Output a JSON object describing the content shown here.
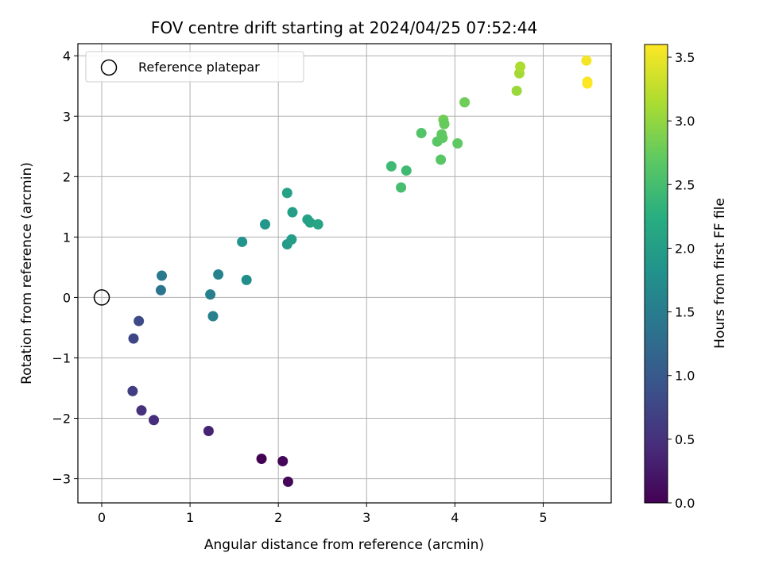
{
  "chart_data": {
    "type": "scatter",
    "title": "FOV centre drift starting at 2024/04/25 07:52:44",
    "xlabel": "Angular distance from reference (arcmin)",
    "ylabel": "Rotation from reference (arcmin)",
    "xlim": [
      -0.27,
      5.77
    ],
    "ylim": [
      -3.4,
      4.2
    ],
    "x_ticks": [
      0,
      1,
      2,
      3,
      4,
      5
    ],
    "x_tick_labels": [
      "0",
      "1",
      "2",
      "3",
      "4",
      "5"
    ],
    "y_ticks": [
      -3,
      -2,
      -1,
      0,
      1,
      2,
      3,
      4
    ],
    "y_tick_labels": [
      "−3",
      "−2",
      "−1",
      "0",
      "1",
      "2",
      "3",
      "4"
    ],
    "grid": true,
    "colormap": "viridis",
    "colorbar": {
      "label": "Hours from first FF file",
      "range": [
        0.0,
        3.6
      ],
      "ticks": [
        0.0,
        0.5,
        1.0,
        1.5,
        2.0,
        2.5,
        3.0,
        3.5
      ],
      "tick_labels": [
        "0.0",
        "0.5",
        "1.0",
        "1.5",
        "2.0",
        "2.5",
        "3.0",
        "3.5"
      ]
    },
    "legend": {
      "placement": "top-left",
      "entries": [
        {
          "label": "Reference platepar",
          "marker": "open-circle",
          "color": "#000000"
        }
      ]
    },
    "reference_point": {
      "x": 0,
      "y": 0
    },
    "points": [
      {
        "x": 1.81,
        "y": -2.67,
        "hours": 0.0
      },
      {
        "x": 2.05,
        "y": -2.71,
        "hours": 0.05
      },
      {
        "x": 2.11,
        "y": -3.05,
        "hours": 0.05
      },
      {
        "x": 1.21,
        "y": -2.21,
        "hours": 0.35
      },
      {
        "x": 0.59,
        "y": -2.03,
        "hours": 0.45
      },
      {
        "x": 0.45,
        "y": -1.87,
        "hours": 0.5
      },
      {
        "x": 0.35,
        "y": -1.55,
        "hours": 0.65
      },
      {
        "x": 0.36,
        "y": -0.68,
        "hours": 0.75
      },
      {
        "x": 0.42,
        "y": -0.39,
        "hours": 0.8
      },
      {
        "x": 0.67,
        "y": 0.12,
        "hours": 1.4
      },
      {
        "x": 0.68,
        "y": 0.36,
        "hours": 1.45
      },
      {
        "x": 1.23,
        "y": 0.05,
        "hours": 1.55
      },
      {
        "x": 1.26,
        "y": -0.31,
        "hours": 1.55
      },
      {
        "x": 1.32,
        "y": 0.38,
        "hours": 1.6
      },
      {
        "x": 1.64,
        "y": 0.29,
        "hours": 1.75
      },
      {
        "x": 1.59,
        "y": 0.92,
        "hours": 1.85
      },
      {
        "x": 1.85,
        "y": 1.21,
        "hours": 1.9
      },
      {
        "x": 2.1,
        "y": 0.88,
        "hours": 1.95
      },
      {
        "x": 2.15,
        "y": 0.96,
        "hours": 2.0
      },
      {
        "x": 2.1,
        "y": 1.73,
        "hours": 2.05
      },
      {
        "x": 2.16,
        "y": 1.41,
        "hours": 2.0
      },
      {
        "x": 2.33,
        "y": 1.29,
        "hours": 2.05
      },
      {
        "x": 2.36,
        "y": 1.24,
        "hours": 2.05
      },
      {
        "x": 2.45,
        "y": 1.21,
        "hours": 2.1
      },
      {
        "x": 3.28,
        "y": 2.17,
        "hours": 2.45
      },
      {
        "x": 3.39,
        "y": 1.82,
        "hours": 2.5
      },
      {
        "x": 3.45,
        "y": 2.1,
        "hours": 2.45
      },
      {
        "x": 3.62,
        "y": 2.72,
        "hours": 2.6
      },
      {
        "x": 3.8,
        "y": 2.58,
        "hours": 2.65
      },
      {
        "x": 3.84,
        "y": 2.28,
        "hours": 2.65
      },
      {
        "x": 3.85,
        "y": 2.7,
        "hours": 2.7
      },
      {
        "x": 3.87,
        "y": 2.94,
        "hours": 2.8
      },
      {
        "x": 3.88,
        "y": 2.87,
        "hours": 2.75
      },
      {
        "x": 3.86,
        "y": 2.64,
        "hours": 2.7
      },
      {
        "x": 4.03,
        "y": 2.55,
        "hours": 2.7
      },
      {
        "x": 4.11,
        "y": 3.23,
        "hours": 2.8
      },
      {
        "x": 4.7,
        "y": 3.42,
        "hours": 3.05
      },
      {
        "x": 4.73,
        "y": 3.71,
        "hours": 3.1
      },
      {
        "x": 4.74,
        "y": 3.82,
        "hours": 3.15
      },
      {
        "x": 5.49,
        "y": 3.92,
        "hours": 3.55
      },
      {
        "x": 5.5,
        "y": 3.57,
        "hours": 3.55
      },
      {
        "x": 5.5,
        "y": 3.54,
        "hours": 3.6
      }
    ]
  }
}
